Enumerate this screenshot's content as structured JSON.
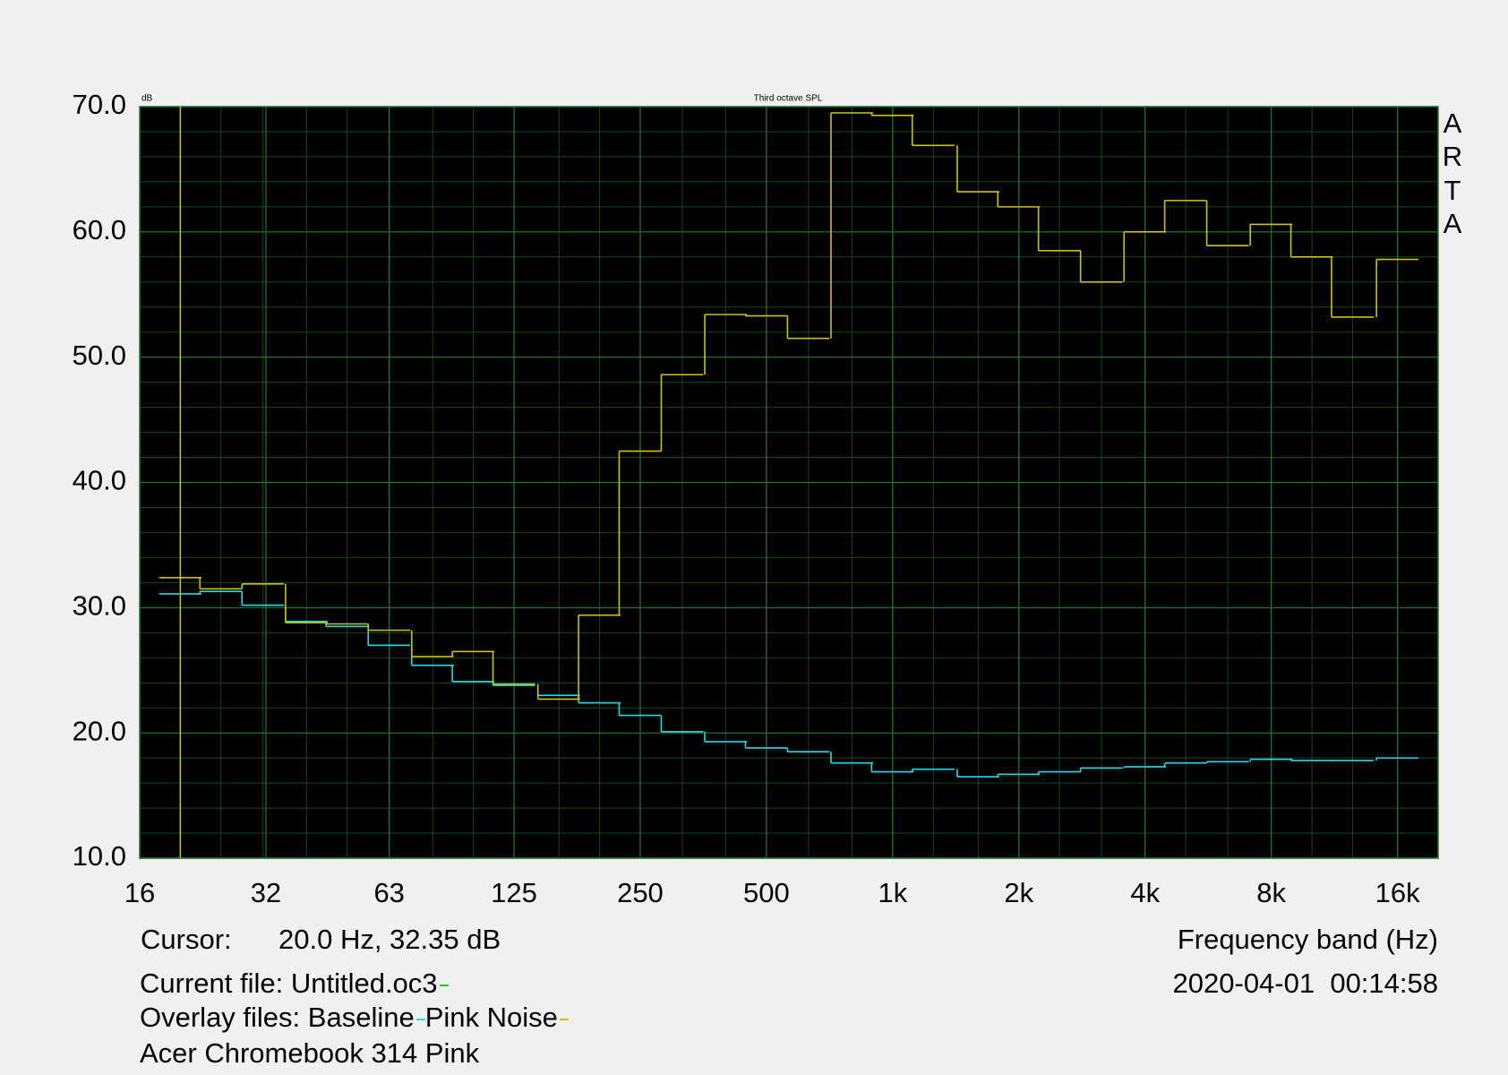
{
  "chart_data": {
    "type": "step",
    "title": "Third octave SPL",
    "y_unit": "dB",
    "watermark": [
      "A",
      "R",
      "T",
      "A"
    ],
    "x_label": "Frequency band (Hz)",
    "log_x": true,
    "xlim": [
      16,
      20000
    ],
    "xticks": [
      16,
      32,
      63,
      125,
      250,
      500,
      {
        "value": 1000,
        "label": "1k"
      },
      {
        "value": 2000,
        "label": "2k"
      },
      {
        "value": 4000,
        "label": "4k"
      },
      {
        "value": 8000,
        "label": "8k"
      },
      {
        "value": 16000,
        "label": "16k"
      }
    ],
    "ylim": [
      10,
      70
    ],
    "yticks": [
      {
        "value": 10,
        "label": "10.0"
      },
      {
        "value": 20,
        "label": "20.0"
      },
      {
        "value": 30,
        "label": "30.0"
      },
      {
        "value": 40,
        "label": "40.0"
      },
      {
        "value": 50,
        "label": "50.0"
      },
      {
        "value": 60,
        "label": "60.0"
      },
      {
        "value": 70,
        "label": "70.0"
      }
    ],
    "grid": true,
    "x": [
      20,
      25,
      31.5,
      40,
      50,
      63,
      80,
      100,
      125,
      160,
      200,
      250,
      315,
      400,
      500,
      630,
      800,
      1000,
      1250,
      1600,
      2000,
      2500,
      3150,
      4000,
      5000,
      6300,
      8000,
      10000,
      12500,
      16000
    ],
    "series": [
      {
        "name": "Baseline",
        "color": "#22dcea",
        "values": [
          31.1,
          31.3,
          30.2,
          28.9,
          28.5,
          27.0,
          25.4,
          24.1,
          23.8,
          23.0,
          22.4,
          21.4,
          20.1,
          19.3,
          18.8,
          18.5,
          17.6,
          16.9,
          17.1,
          16.5,
          16.7,
          16.9,
          17.2,
          17.3,
          17.6,
          17.7,
          17.9,
          17.8,
          17.8,
          18.0
        ]
      },
      {
        "name": "Pink Noise",
        "color": "#cfc400",
        "values": [
          32.4,
          31.5,
          31.9,
          28.8,
          28.7,
          28.2,
          26.1,
          26.5,
          23.9,
          22.7,
          29.4,
          42.5,
          48.6,
          53.4,
          53.3,
          51.5,
          69.5,
          69.3,
          66.9,
          63.2,
          62.0,
          58.5,
          56.0,
          60.0,
          62.5,
          58.9,
          60.6,
          58.0,
          53.2,
          57.8
        ]
      }
    ],
    "cursor": {
      "x": 20,
      "color": "#cfc400",
      "prefix": "Cursor:",
      "label": "20.0 Hz, 32.35 dB"
    },
    "current_file": {
      "label": "Current file: Untitled.oc3",
      "color": "#22cc22"
    },
    "overlay_label": "Overlay files:",
    "date": "2020-04-01  00:14:58",
    "note": "Acer Chromebook 314 Pink"
  }
}
